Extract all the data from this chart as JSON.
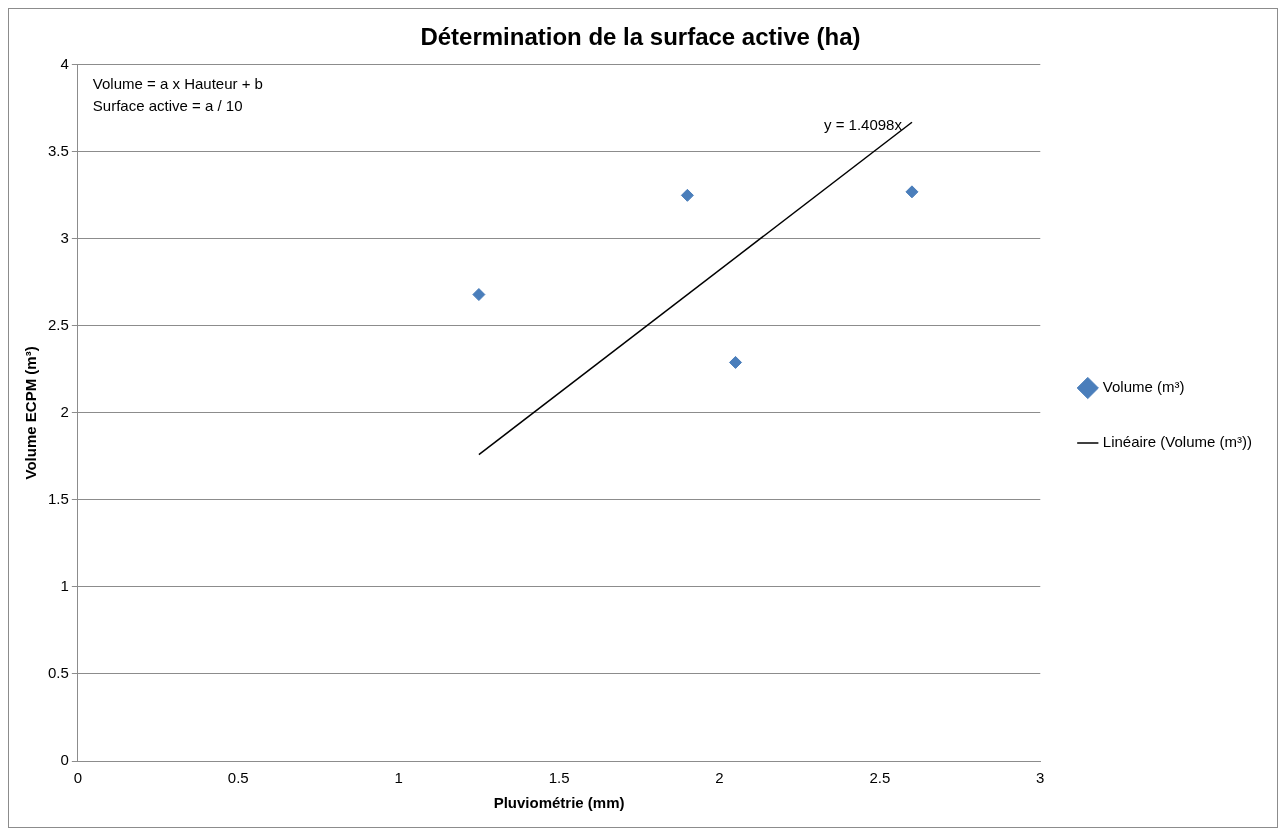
{
  "chart_data": {
    "type": "scatter",
    "title": "Détermination de la surface active (ha)",
    "xlabel": "Pluviométrie (mm)",
    "ylabel": "Volume ECPM (m³)",
    "series": [
      {
        "name": "Volume (m³)",
        "color": "#4a7ebb",
        "x": [
          1.25,
          1.9,
          2.05,
          2.6
        ],
        "values": [
          2.68,
          3.25,
          2.29,
          3.27
        ],
        "marker": "diamond"
      },
      {
        "name": "Linéaire (Volume (m³))",
        "type": "line",
        "color": "#000000",
        "x": [
          1.25,
          2.6
        ],
        "values": [
          1.76,
          3.67
        ],
        "marker": "none"
      }
    ],
    "xlim": [
      0,
      3
    ],
    "xticks": [
      0,
      0.5,
      1,
      1.5,
      2,
      2.5,
      3
    ],
    "ylim": [
      0,
      4
    ],
    "yticks": [
      0,
      0.5,
      1,
      1.5,
      2,
      2.5,
      3,
      3.5,
      4
    ],
    "grid": "y",
    "legend": "right",
    "annotations": [
      "Volume = a x Hauteur + b",
      "Surface active = a / 10",
      "y = 1.4098x"
    ]
  }
}
